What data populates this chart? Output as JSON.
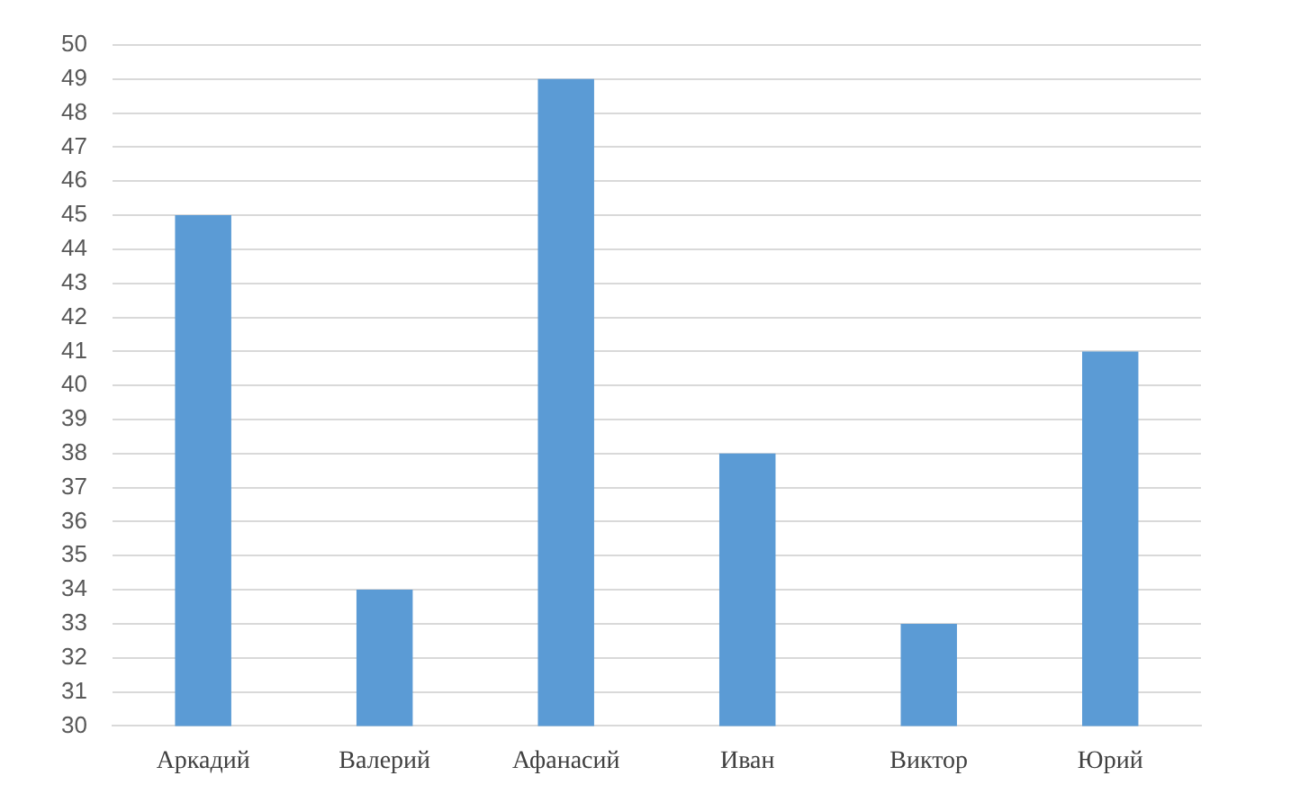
{
  "chart_data": {
    "type": "bar",
    "categories": [
      "Аркадий",
      "Валерий",
      "Афанасий",
      "Иван",
      "Виктор",
      "Юрий"
    ],
    "values": [
      45,
      34,
      49,
      38,
      33,
      41
    ],
    "color": "#5b9bd5",
    "ylim": [
      30,
      50
    ],
    "yticks": [
      30,
      31,
      32,
      33,
      34,
      35,
      36,
      37,
      38,
      39,
      40,
      41,
      42,
      43,
      44,
      45,
      46,
      47,
      48,
      49,
      50
    ],
    "grid": "y",
    "legend": false
  }
}
